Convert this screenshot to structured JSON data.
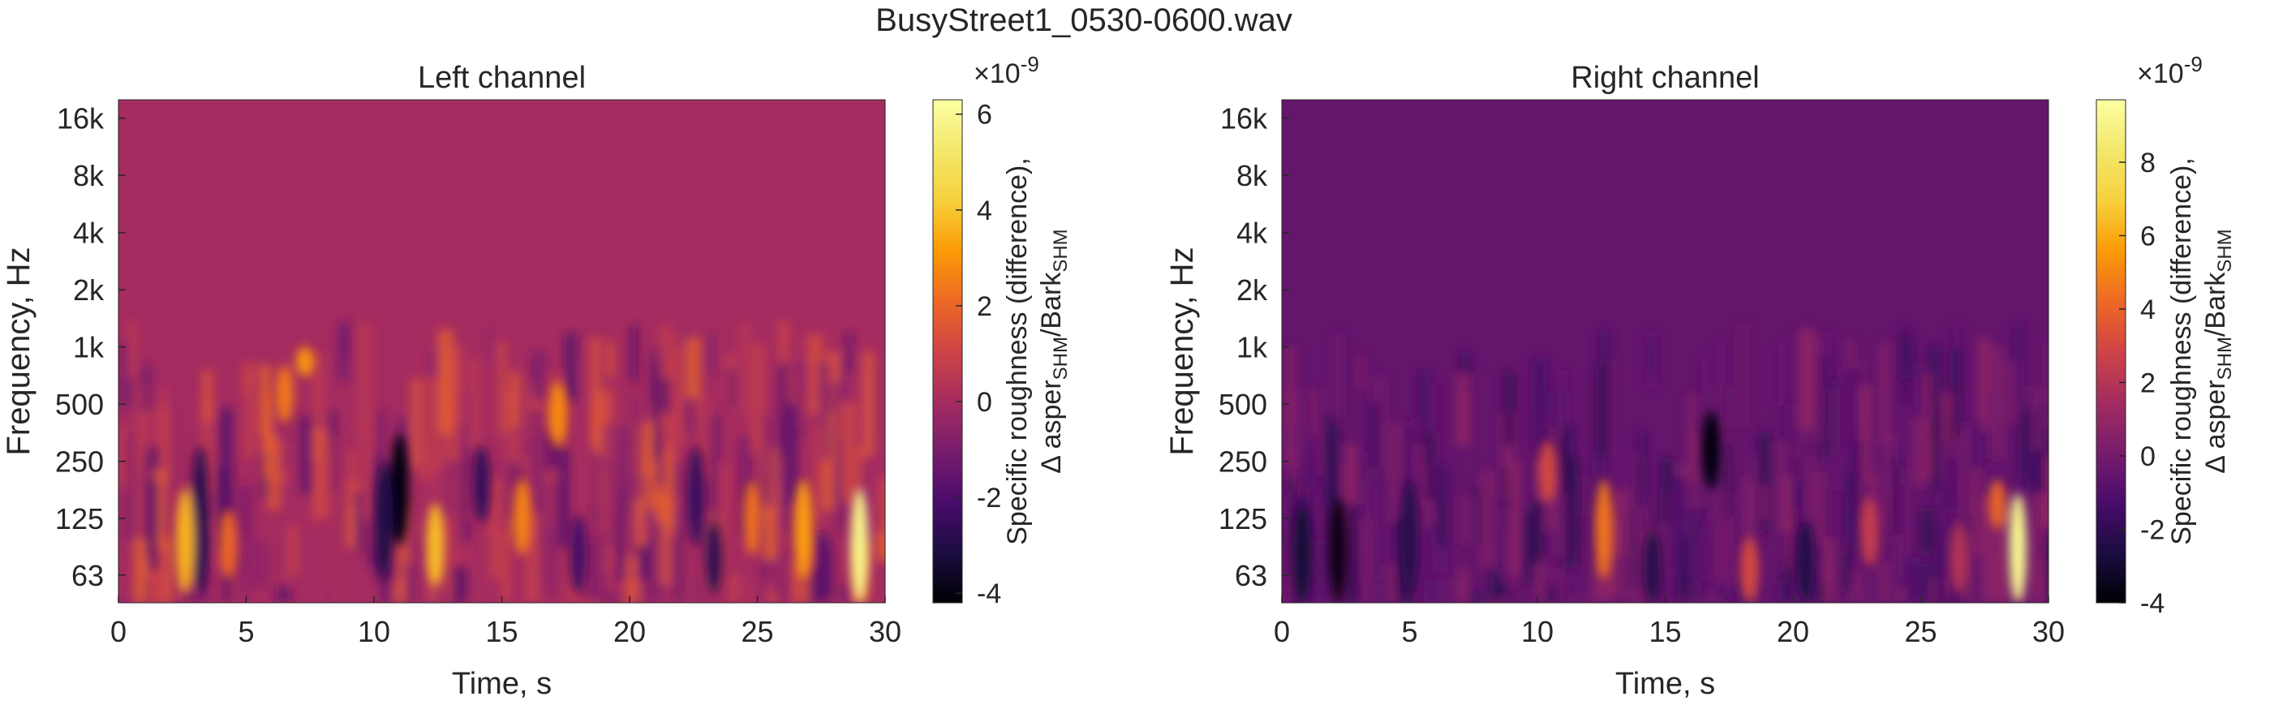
{
  "figure": {
    "title": "BusyStreet1_0530-0600.wav"
  },
  "chart_data": [
    {
      "type": "heatmap",
      "title": "Left channel",
      "xlabel": "Time, s",
      "ylabel": "Frequency, Hz",
      "x_ticks": [
        "0",
        "5",
        "10",
        "15",
        "20",
        "25",
        "30"
      ],
      "xlim": [
        0,
        30
      ],
      "y_scale": "log",
      "y_ticks": [
        "63",
        "125",
        "250",
        "500",
        "1k",
        "2k",
        "4k",
        "8k",
        "16k"
      ],
      "colorbar": {
        "label_line1": "Specific roughness (difference),",
        "label_line2_prefix": "Δ asper",
        "label_sub1": "SHM",
        "label_mid": "/Bark",
        "label_sub2": "SHM",
        "multiplier_base": "×10",
        "multiplier_exp": "-9",
        "clim": [
          -4.2,
          6.3
        ],
        "ticks": [
          "-4",
          "-2",
          "0",
          "2",
          "4",
          "6"
        ],
        "colormap": "inferno"
      },
      "hotspots": [
        {
          "t": 2.6,
          "f_low": 50,
          "f_high": 180,
          "value": 3.6
        },
        {
          "t": 4.3,
          "f_low": 60,
          "f_high": 140,
          "value": 2.0
        },
        {
          "t": 6.5,
          "f_low": 400,
          "f_high": 800,
          "value": 2.4
        },
        {
          "t": 7.3,
          "f_low": 700,
          "f_high": 1000,
          "value": 3.0
        },
        {
          "t": 12.4,
          "f_low": 55,
          "f_high": 150,
          "value": 3.8
        },
        {
          "t": 17.2,
          "f_low": 300,
          "f_high": 650,
          "value": 2.8
        },
        {
          "t": 15.8,
          "f_low": 80,
          "f_high": 200,
          "value": 2.6
        },
        {
          "t": 24.8,
          "f_low": 80,
          "f_high": 200,
          "value": 2.2
        },
        {
          "t": 26.8,
          "f_low": 60,
          "f_high": 200,
          "value": 3.2
        },
        {
          "t": 29.0,
          "f_low": 45,
          "f_high": 180,
          "value": 5.8
        }
      ],
      "coldspots": [
        {
          "t": 11.0,
          "f_low": 90,
          "f_high": 350,
          "value": -4.0
        },
        {
          "t": 10.4,
          "f_low": 60,
          "f_high": 250,
          "value": -3.0
        },
        {
          "t": 3.2,
          "f_low": 50,
          "f_high": 300,
          "value": -2.8
        },
        {
          "t": 22.6,
          "f_low": 90,
          "f_high": 300,
          "value": -2.4
        },
        {
          "t": 23.3,
          "f_low": 50,
          "f_high": 120,
          "value": -2.6
        },
        {
          "t": 18.0,
          "f_low": 50,
          "f_high": 130,
          "value": -2.2
        },
        {
          "t": 14.2,
          "f_low": 120,
          "f_high": 300,
          "value": -2.5
        }
      ],
      "background_value": 0.0
    },
    {
      "type": "heatmap",
      "title": "Right channel",
      "xlabel": "Time, s",
      "ylabel": "Frequency, Hz",
      "x_ticks": [
        "0",
        "5",
        "10",
        "15",
        "20",
        "25",
        "30"
      ],
      "xlim": [
        0,
        30
      ],
      "y_scale": "log",
      "y_ticks": [
        "63",
        "125",
        "250",
        "500",
        "1k",
        "2k",
        "4k",
        "8k",
        "16k"
      ],
      "colorbar": {
        "label_line1": "Specific roughness (difference),",
        "label_line2_prefix": "Δ asper",
        "label_sub1": "SHM",
        "label_mid": "/Bark",
        "label_sub2": "SHM",
        "multiplier_base": "×10",
        "multiplier_exp": "-9",
        "clim": [
          -4.0,
          9.7
        ],
        "ticks": [
          "-4",
          "-2",
          "0",
          "2",
          "4",
          "6",
          "8"
        ],
        "colormap": "inferno"
      },
      "hotspots": [
        {
          "t": 12.6,
          "f_low": 60,
          "f_high": 200,
          "value": 4.5
        },
        {
          "t": 10.4,
          "f_low": 150,
          "f_high": 320,
          "value": 3.0
        },
        {
          "t": 18.3,
          "f_low": 45,
          "f_high": 100,
          "value": 3.0
        },
        {
          "t": 23.0,
          "f_low": 70,
          "f_high": 160,
          "value": 2.5
        },
        {
          "t": 26.5,
          "f_low": 50,
          "f_high": 120,
          "value": 2.0
        },
        {
          "t": 28.0,
          "f_low": 110,
          "f_high": 200,
          "value": 4.0
        },
        {
          "t": 28.8,
          "f_low": 45,
          "f_high": 170,
          "value": 9.2
        }
      ],
      "coldspots": [
        {
          "t": 2.2,
          "f_low": 45,
          "f_high": 160,
          "value": -3.6
        },
        {
          "t": 0.8,
          "f_low": 45,
          "f_high": 150,
          "value": -2.8
        },
        {
          "t": 16.8,
          "f_low": 180,
          "f_high": 460,
          "value": -3.8
        },
        {
          "t": 20.5,
          "f_low": 45,
          "f_high": 120,
          "value": -2.4
        },
        {
          "t": 5.0,
          "f_low": 50,
          "f_high": 200,
          "value": -2.2
        },
        {
          "t": 14.5,
          "f_low": 45,
          "f_high": 110,
          "value": -2.3
        }
      ],
      "background_value": -0.5
    }
  ]
}
